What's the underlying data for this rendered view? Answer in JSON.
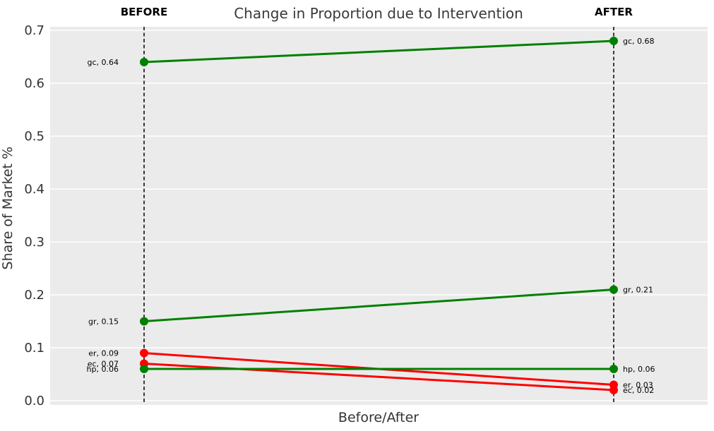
{
  "chart_data": {
    "type": "line",
    "subtype": "slopegraph",
    "title": "Change in Proportion due to Intervention",
    "xlabel": "Before/After",
    "ylabel": "Share of Market %",
    "x_categories": [
      "BEFORE",
      "AFTER"
    ],
    "ylim": [
      0.0,
      0.7
    ],
    "ytick_values": [
      0.0,
      0.1,
      0.2,
      0.3,
      0.4,
      0.5,
      0.6,
      0.7
    ],
    "ytick_labels": [
      "0.0",
      "0.1",
      "0.2",
      "0.3",
      "0.4",
      "0.5",
      "0.6",
      "0.7"
    ],
    "grid": true,
    "legend": false,
    "plot_bg_color": "#ebebeb",
    "grid_color": "#ffffff",
    "vline_color": "#000000",
    "increase_color": "#008000",
    "decrease_color": "#ff0000",
    "series": [
      {
        "name": "gc",
        "values": [
          0.64,
          0.68
        ],
        "color": "#008000",
        "labels": [
          "gc, 0.64",
          "gc, 0.68"
        ]
      },
      {
        "name": "gr",
        "values": [
          0.15,
          0.21
        ],
        "color": "#008000",
        "labels": [
          "gr, 0.15",
          "gr, 0.21"
        ]
      },
      {
        "name": "er",
        "values": [
          0.09,
          0.03
        ],
        "color": "#ff0000",
        "labels": [
          "er, 0.09",
          "er, 0.03"
        ]
      },
      {
        "name": "ec",
        "values": [
          0.07,
          0.02
        ],
        "color": "#ff0000",
        "labels": [
          "ec, 0.07",
          "ec, 0.02"
        ]
      },
      {
        "name": "hp",
        "values": [
          0.06,
          0.06
        ],
        "color": "#008000",
        "labels": [
          "hp, 0.06",
          "hp, 0.06"
        ]
      }
    ]
  }
}
